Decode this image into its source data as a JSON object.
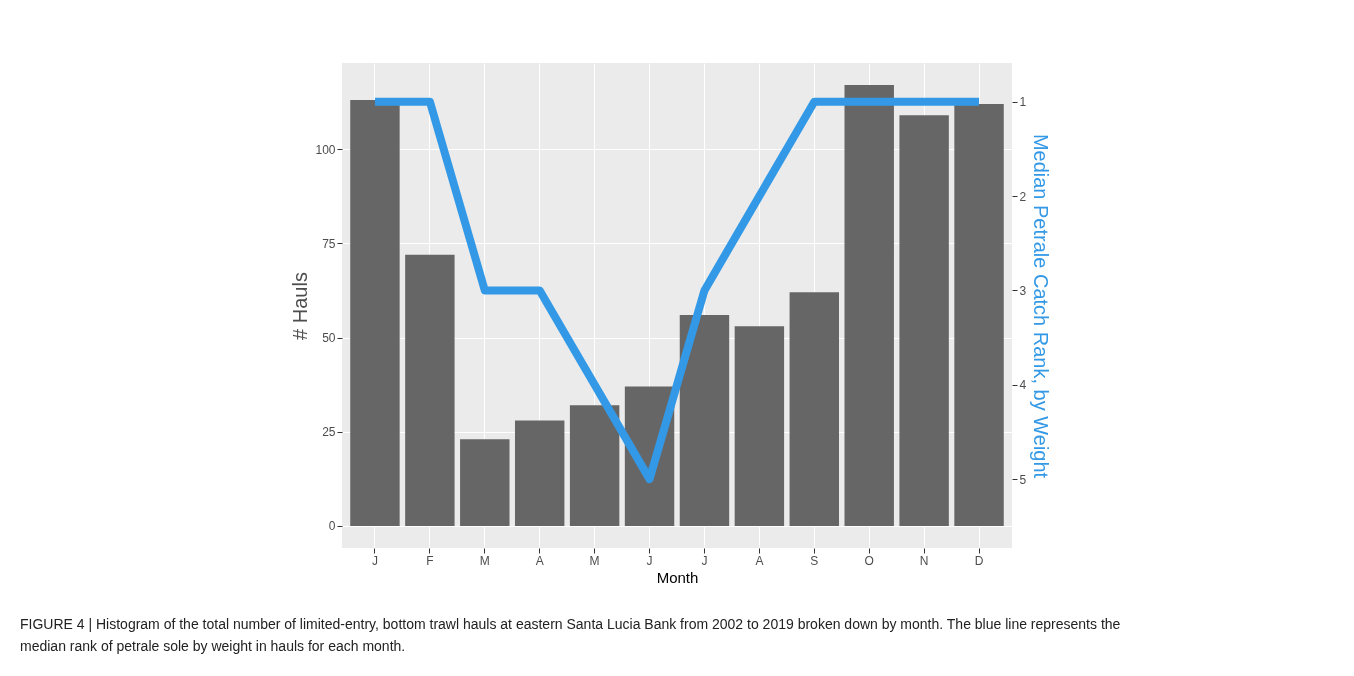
{
  "chart_data": {
    "type": "bar",
    "categories": [
      "J",
      "F",
      "M",
      "A",
      "M",
      "J",
      "J",
      "A",
      "S",
      "O",
      "N",
      "D"
    ],
    "xlabel": "Month",
    "ylabel": "# Hauls",
    "y2label": "Median Petrale Catch Rank, by Weight",
    "series": [
      {
        "color": "#666666",
        "values": [
          113,
          72,
          23,
          28,
          32,
          37,
          56,
          53,
          62,
          117,
          109,
          112
        ]
      },
      {
        "type": "line",
        "axis": "y2",
        "color": "#3399e6",
        "values": [
          1,
          1,
          3,
          3,
          4,
          5,
          3,
          2,
          1,
          1,
          1,
          1
        ]
      }
    ],
    "ylim": [
      -5.85,
      122.85
    ],
    "yticks": [
      0,
      25,
      50,
      75,
      100
    ],
    "y2lim": [
      5.73,
      0.59
    ],
    "y2ticks": [
      1,
      2,
      3,
      4,
      5
    ],
    "grid": true,
    "legend": false,
    "annotations": [
      "FIGURE 4 | Histogram of the total number of limited-entry, bottom trawl hauls at eastern Santa Lucia Bank from 2002 to 2019 broken down by month. The blue line represents the median rank of petrale sole by weight in hauls for each month."
    ]
  }
}
